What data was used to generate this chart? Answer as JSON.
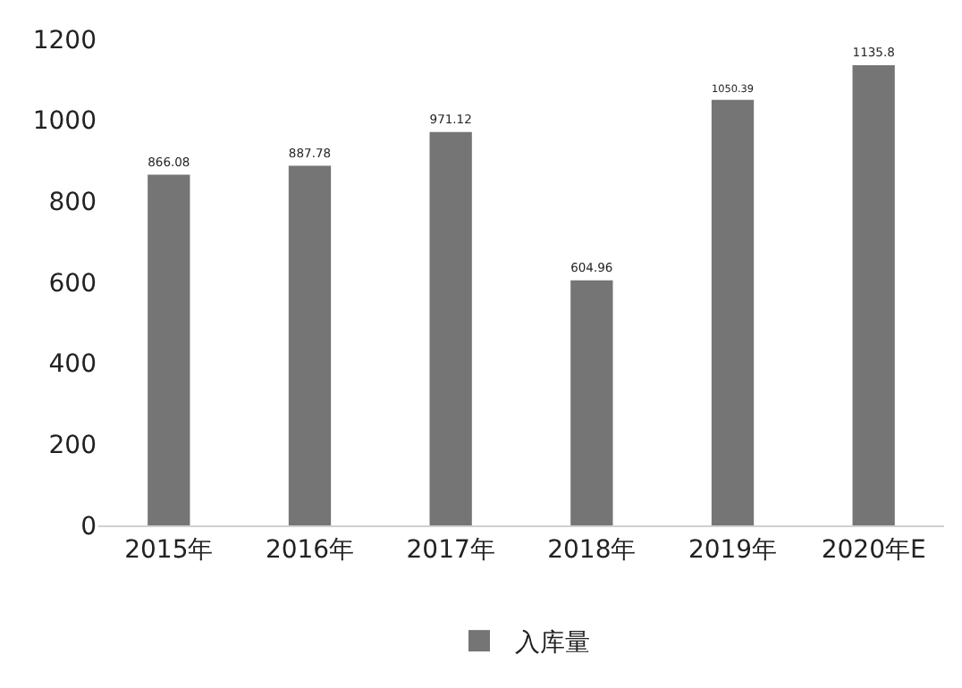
{
  "chart_data": {
    "type": "bar",
    "categories": [
      "2015年",
      "2016年",
      "2017年",
      "2018年",
      "2019年",
      "2020年E"
    ],
    "series": [
      {
        "name": "入库量",
        "color": "#757575",
        "values": [
          866.08,
          887.78,
          971.12,
          604.96,
          1050.39,
          1135.8
        ]
      }
    ],
    "ylim": [
      0,
      1200
    ],
    "yticks": [
      0,
      200,
      400,
      600,
      800,
      1000,
      1200
    ],
    "data_labels": true,
    "legend": "bottom"
  }
}
